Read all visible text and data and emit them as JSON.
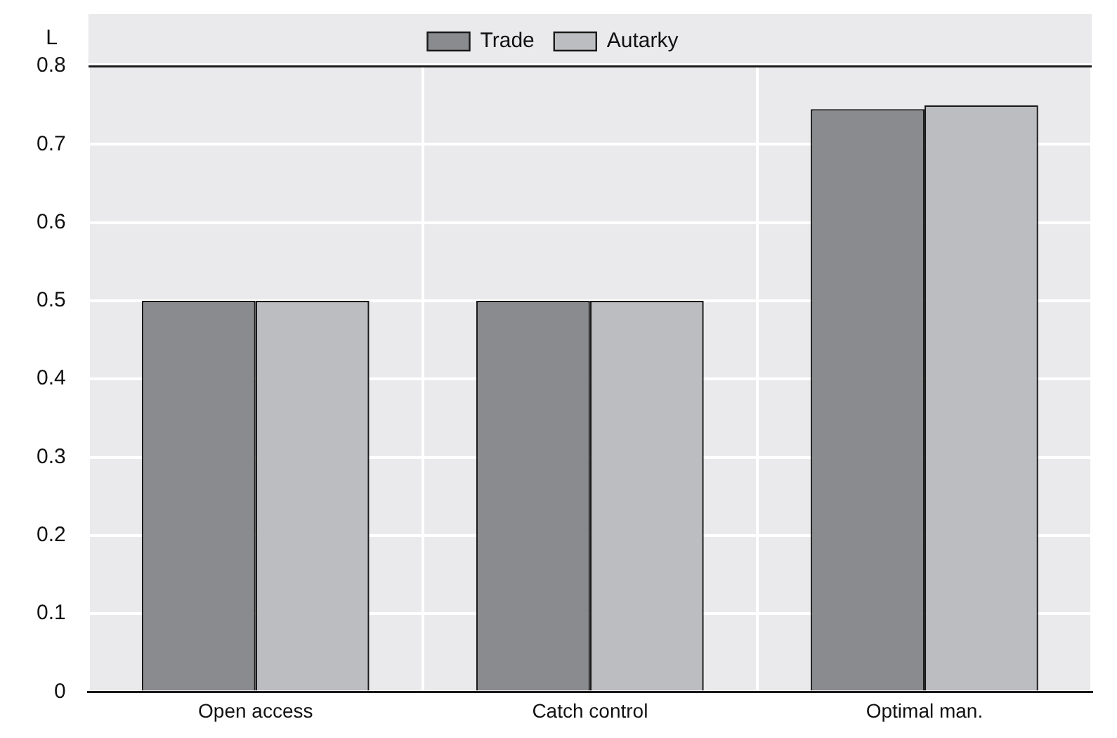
{
  "chart_data": {
    "type": "bar",
    "ylabel": "L",
    "categories": [
      "Open access",
      "Catch control",
      "Optimal man."
    ],
    "series": [
      {
        "name": "Trade",
        "color": "#8a8b8f",
        "values": [
          0.5,
          0.5,
          0.745
        ]
      },
      {
        "name": "Autarky",
        "color": "#bcbdc1",
        "values": [
          0.5,
          0.5,
          0.75
        ]
      }
    ],
    "ylim": [
      0,
      0.8
    ],
    "yticks": [
      0,
      0.1,
      0.2,
      0.3,
      0.4,
      0.5,
      0.6,
      0.7,
      0.8
    ],
    "grid": true,
    "legend": "top"
  }
}
